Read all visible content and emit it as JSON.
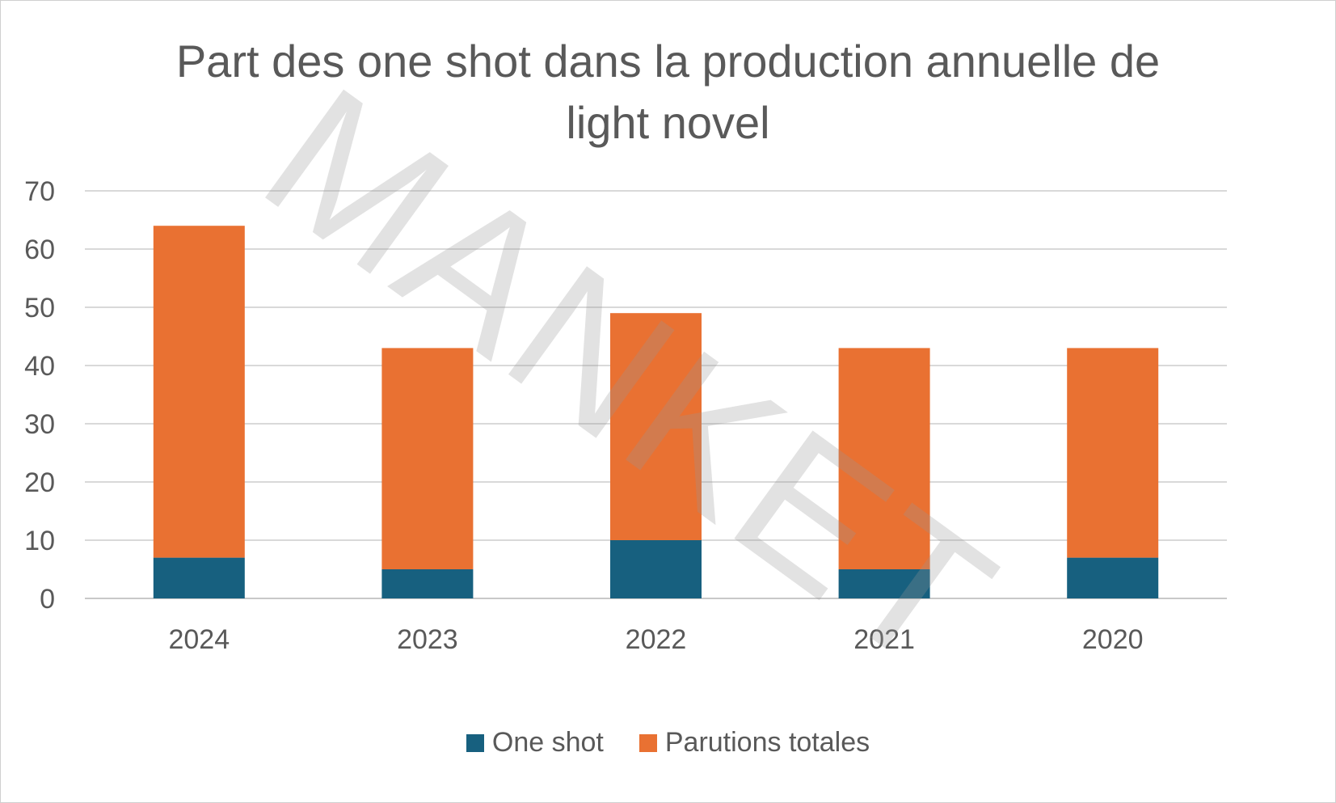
{
  "chart_data": {
    "type": "bar",
    "stacked": true,
    "title": "Part des one shot dans la production annuelle de\nlight novel",
    "categories": [
      "2024",
      "2023",
      "2022",
      "2021",
      "2020"
    ],
    "series": [
      {
        "name": "One shot",
        "color": "#17607f",
        "values": [
          7,
          5,
          10,
          5,
          7
        ]
      },
      {
        "name": "Parutions totales",
        "color": "#e97132",
        "values": [
          57,
          38,
          39,
          38,
          36
        ]
      }
    ],
    "yticks": [
      "0",
      "10",
      "20",
      "30",
      "40",
      "50",
      "60",
      "70"
    ],
    "ylim": [
      0,
      70
    ],
    "grid": true,
    "legend_position": "bottom"
  },
  "watermark": "MANKET"
}
